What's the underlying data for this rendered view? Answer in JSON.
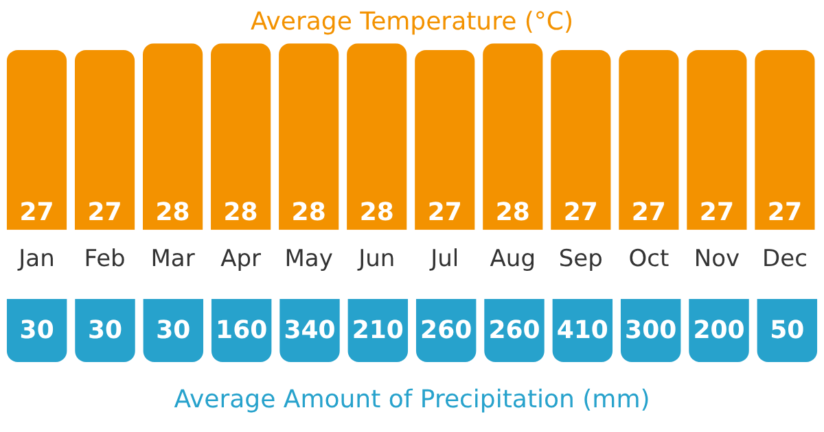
{
  "chart_data": [
    {
      "type": "bar",
      "title": "Average Temperature (°C)",
      "categories": [
        "Jan",
        "Feb",
        "Mar",
        "Apr",
        "May",
        "Jun",
        "Jul",
        "Aug",
        "Sep",
        "Oct",
        "Nov",
        "Dec"
      ],
      "values": [
        27,
        27,
        28,
        28,
        28,
        28,
        27,
        28,
        27,
        27,
        27,
        27
      ],
      "color": "#f39200",
      "data_labels": true,
      "ylim": [
        0,
        28
      ],
      "tick_labels": "x"
    },
    {
      "type": "other",
      "title": "Average Amount of Precipitation (mm)",
      "values": [
        30,
        30,
        30,
        160,
        340,
        210,
        260,
        260,
        410,
        300,
        200,
        50
      ],
      "color": "#27a2cc",
      "data_labels": true
    }
  ]
}
